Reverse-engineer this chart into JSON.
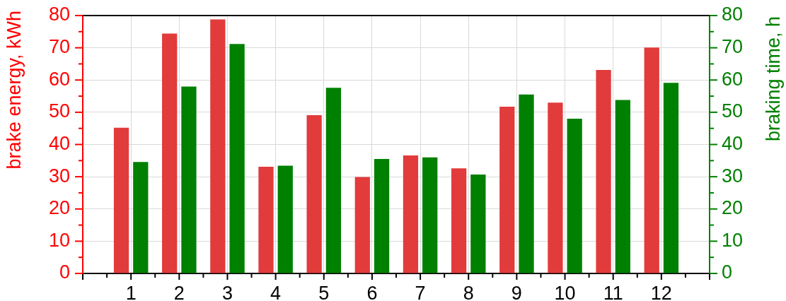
{
  "chart_data": {
    "type": "bar",
    "ylabel": "brake energy, kWh",
    "y2label": "braking time, h",
    "x": [
      1,
      2,
      3,
      4,
      5,
      6,
      7,
      8,
      9,
      10,
      11,
      12
    ],
    "series": [
      {
        "color": "#e23b3b",
        "values": [
          45.2,
          74.4,
          78.8,
          33.1,
          49.1,
          29.9,
          36.6,
          32.6,
          51.7,
          53.0,
          63.1,
          70.1
        ]
      },
      {
        "color": "#008000",
        "axis": "y2",
        "values": [
          34.6,
          58.0,
          71.2,
          33.4,
          57.6,
          35.5,
          36.0,
          30.7,
          55.5,
          48.0,
          53.8,
          59.1
        ]
      }
    ],
    "xlim": [
      0,
      13
    ],
    "xticks": [
      {
        "value": 0,
        "label": null
      },
      {
        "value": 0.5,
        "label": null
      },
      1,
      {
        "value": 1.5,
        "label": null
      },
      2,
      {
        "value": 2.5,
        "label": null
      },
      3,
      {
        "value": 3.5,
        "label": null
      },
      4,
      {
        "value": 4.5,
        "label": null
      },
      5,
      {
        "value": 5.5,
        "label": null
      },
      6,
      {
        "value": 6.5,
        "label": null
      },
      7,
      {
        "value": 7.5,
        "label": null
      },
      8,
      {
        "value": 8.5,
        "label": null
      },
      9,
      {
        "value": 9.5,
        "label": null
      },
      10,
      {
        "value": 10.5,
        "label": null
      },
      11,
      {
        "value": 11.5,
        "label": null
      },
      12,
      {
        "value": 12.5,
        "label": null
      },
      {
        "value": 13,
        "label": null
      }
    ],
    "ylim": [
      0,
      80
    ],
    "yticks": [
      0,
      {
        "value": 5,
        "label": null
      },
      10,
      {
        "value": 15,
        "label": null
      },
      20,
      {
        "value": 25,
        "label": null
      },
      30,
      {
        "value": 35,
        "label": null
      },
      40,
      {
        "value": 45,
        "label": null
      },
      50,
      {
        "value": 55,
        "label": null
      },
      60,
      {
        "value": 65,
        "label": null
      },
      70,
      {
        "value": 75,
        "label": null
      },
      80
    ],
    "y2lim": [
      0,
      80
    ],
    "y2ticks": [
      0,
      {
        "value": 5,
        "label": null
      },
      10,
      {
        "value": 15,
        "label": null
      },
      20,
      {
        "value": 25,
        "label": null
      },
      30,
      {
        "value": 35,
        "label": null
      },
      40,
      {
        "value": 45,
        "label": null
      },
      50,
      {
        "value": 55,
        "label": null
      },
      60,
      {
        "value": 65,
        "label": null
      },
      70,
      {
        "value": 75,
        "label": null
      },
      80
    ],
    "grid": true
  }
}
